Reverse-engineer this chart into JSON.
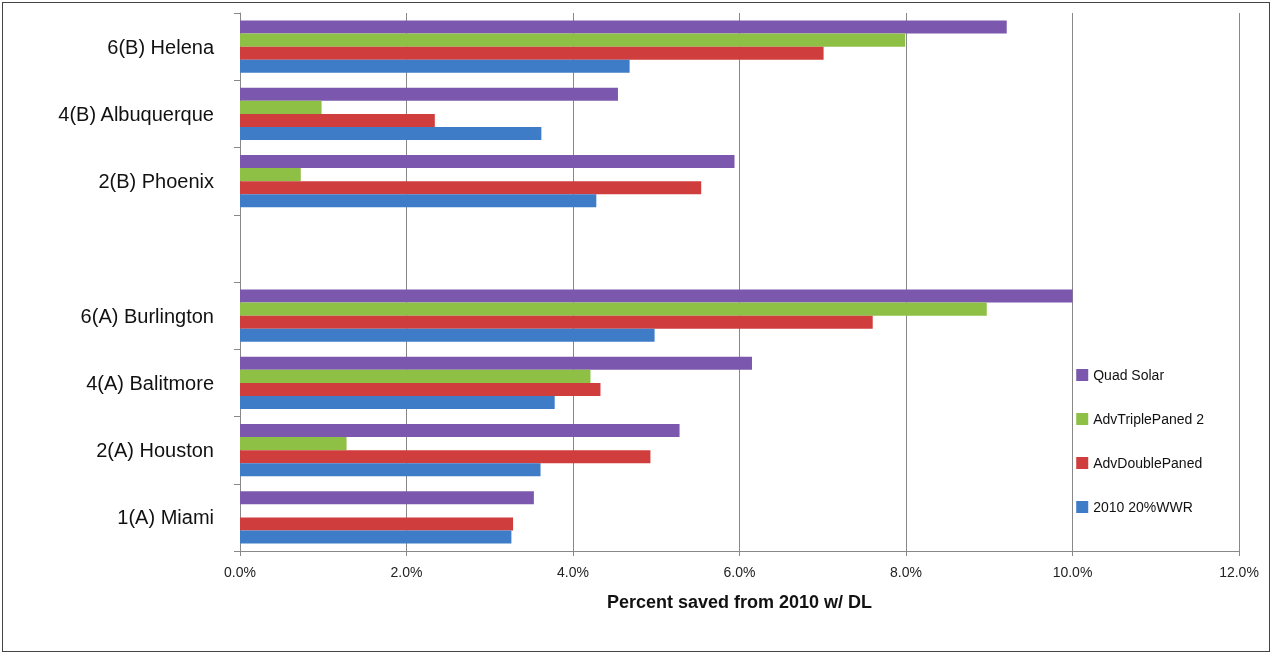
{
  "chart_data": {
    "type": "bar",
    "orientation": "horizontal",
    "xlabel": "Percent saved from 2010 w/ DL",
    "categories": [
      "6(B) Helena",
      "4(B) Albuquerque",
      "2(B) Phoenix",
      null,
      "6(A) Burlington",
      "4(A) Balitmore",
      "2(A) Houston",
      "1(A) Miami"
    ],
    "series": [
      {
        "name": "Quad Solar",
        "color": "#7b58ad",
        "values": [
          9.21,
          4.54,
          5.94,
          null,
          10.0,
          6.15,
          5.28,
          3.53
        ]
      },
      {
        "name": "AdvTriplePaned 2",
        "color": "#8dc044",
        "values": [
          7.99,
          0.98,
          0.73,
          null,
          8.97,
          4.21,
          1.28,
          null
        ]
      },
      {
        "name": "AdvDoublePaned",
        "color": "#cf3d3c",
        "values": [
          7.01,
          2.34,
          5.54,
          null,
          7.6,
          4.33,
          4.93,
          3.28
        ]
      },
      {
        "name": "2010 20%WWR",
        "color": "#3e7cc8",
        "values": [
          4.68,
          3.62,
          4.28,
          null,
          4.98,
          3.78,
          3.61,
          3.26
        ]
      }
    ],
    "xlim": [
      0,
      12
    ],
    "xticks": [
      {
        "value": 0,
        "label": "0.0%"
      },
      {
        "value": 2,
        "label": "2.0%"
      },
      {
        "value": 4,
        "label": "4.0%"
      },
      {
        "value": 6,
        "label": "6.0%"
      },
      {
        "value": 8,
        "label": "8.0%"
      },
      {
        "value": 10,
        "label": "10.0%"
      },
      {
        "value": 12,
        "label": "12.0%"
      }
    ],
    "grid": "x",
    "legend": "right"
  }
}
